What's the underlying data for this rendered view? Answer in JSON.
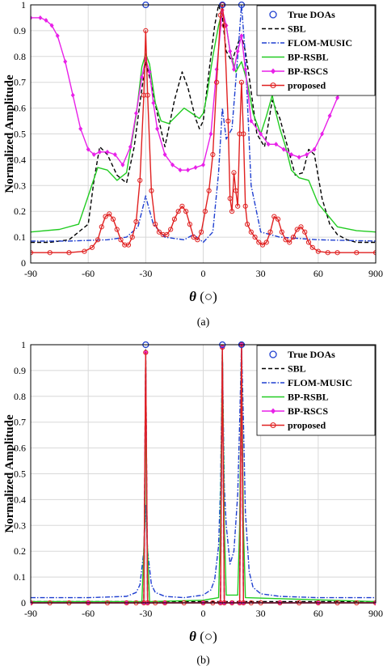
{
  "chart_data": [
    {
      "type": "line",
      "caption": "(a)",
      "ylabel": "Normalized Amplitude",
      "xlabel": "θ (○)",
      "xlim": [
        -90,
        90
      ],
      "ylim": [
        0,
        1
      ],
      "x_ticks": [
        "-90",
        "-60",
        "-30",
        "0",
        "30",
        "60",
        "900"
      ],
      "y_ticks": [
        "0",
        "0.1",
        "0.2",
        "0.3",
        "0.4",
        "0.5",
        "0.6",
        "0.7",
        "0.8",
        "0.9",
        "1"
      ],
      "grid": true,
      "legend": "top-right",
      "series": [
        {
          "name": "True DOAs",
          "color": "#1f3fd0",
          "style": "marker-circle",
          "x": [
            -30,
            10,
            20
          ],
          "y": [
            1,
            1,
            1
          ]
        },
        {
          "name": "SBL",
          "color": "#000000",
          "style": "dashed",
          "x": [
            -90,
            -80,
            -70,
            -60,
            -57,
            -54,
            -50,
            -45,
            -40,
            -36,
            -33,
            -30,
            -27,
            -24,
            -20,
            -15,
            -11,
            -8,
            -4,
            -2,
            0,
            3,
            6,
            8,
            10,
            12,
            15,
            18,
            20,
            22,
            24,
            28,
            32,
            36,
            40,
            44,
            48,
            52,
            55,
            58,
            62,
            66,
            70,
            75,
            80,
            90
          ],
          "y": [
            0.08,
            0.08,
            0.09,
            0.15,
            0.32,
            0.45,
            0.42,
            0.34,
            0.31,
            0.45,
            0.62,
            0.78,
            0.69,
            0.58,
            0.45,
            0.63,
            0.74,
            0.68,
            0.56,
            0.52,
            0.55,
            0.74,
            0.92,
            1.0,
            0.95,
            0.82,
            0.78,
            0.85,
            0.88,
            0.82,
            0.72,
            0.5,
            0.45,
            0.63,
            0.56,
            0.45,
            0.34,
            0.35,
            0.44,
            0.42,
            0.25,
            0.15,
            0.11,
            0.09,
            0.08,
            0.08
          ]
        },
        {
          "name": "FLOM-MUSIC",
          "color": "#1f3fd0",
          "style": "dashdot",
          "x": [
            -90,
            -70,
            -50,
            -40,
            -34,
            -31,
            -30,
            -29,
            -26,
            -20,
            -10,
            -5,
            0,
            5,
            8,
            10,
            12,
            15,
            18,
            20,
            22,
            25,
            30,
            40,
            60,
            90
          ],
          "y": [
            0.085,
            0.085,
            0.09,
            0.1,
            0.14,
            0.23,
            0.26,
            0.23,
            0.15,
            0.1,
            0.09,
            0.11,
            0.08,
            0.12,
            0.35,
            0.6,
            0.48,
            0.52,
            0.8,
            1.0,
            0.8,
            0.3,
            0.12,
            0.1,
            0.09,
            0.085
          ]
        },
        {
          "name": "BP-RSBL",
          "color": "#22cc22",
          "style": "solid",
          "x": [
            -90,
            -75,
            -65,
            -60,
            -55,
            -50,
            -45,
            -40,
            -35,
            -32,
            -30,
            -28,
            -25,
            -22,
            -18,
            -14,
            -10,
            -6,
            -2,
            0,
            2,
            5,
            8,
            10,
            12,
            14,
            17,
            20,
            23,
            26,
            30,
            33,
            36,
            38,
            40,
            43,
            46,
            50,
            55,
            60,
            70,
            80,
            90
          ],
          "y": [
            0.12,
            0.13,
            0.15,
            0.26,
            0.37,
            0.36,
            0.32,
            0.35,
            0.57,
            0.76,
            0.81,
            0.77,
            0.62,
            0.55,
            0.54,
            0.57,
            0.6,
            0.58,
            0.56,
            0.58,
            0.65,
            0.8,
            0.92,
            0.98,
            0.92,
            0.82,
            0.74,
            0.78,
            0.7,
            0.58,
            0.5,
            0.57,
            0.65,
            0.58,
            0.52,
            0.45,
            0.36,
            0.33,
            0.32,
            0.23,
            0.14,
            0.125,
            0.12
          ]
        },
        {
          "name": "BP-RSCS",
          "color": "#e820e8",
          "style": "diamond",
          "x": [
            -90,
            -85,
            -82,
            -79,
            -76,
            -72,
            -68,
            -64,
            -60,
            -57,
            -54,
            -50,
            -46,
            -42,
            -38,
            -35,
            -32,
            -30,
            -28,
            -26,
            -24,
            -20,
            -16,
            -12,
            -8,
            -4,
            0,
            4,
            7,
            10,
            12,
            14,
            16,
            18,
            20,
            22,
            25,
            30,
            34,
            38,
            42,
            46,
            50,
            54,
            58,
            62,
            66,
            70,
            72
          ],
          "y": [
            0.95,
            0.95,
            0.94,
            0.92,
            0.88,
            0.78,
            0.65,
            0.52,
            0.44,
            0.42,
            0.43,
            0.43,
            0.42,
            0.38,
            0.45,
            0.58,
            0.72,
            0.79,
            0.74,
            0.62,
            0.52,
            0.42,
            0.38,
            0.36,
            0.36,
            0.37,
            0.38,
            0.5,
            0.75,
            0.98,
            0.92,
            0.82,
            0.75,
            0.82,
            0.88,
            0.75,
            0.55,
            0.5,
            0.46,
            0.46,
            0.44,
            0.42,
            0.41,
            0.42,
            0.44,
            0.5,
            0.57,
            0.64,
            0.67
          ]
        },
        {
          "name": "proposed",
          "color": "#e02020",
          "style": "circle",
          "x": [
            -90,
            -80,
            -70,
            -62,
            -58,
            -55,
            -53,
            -51,
            -49,
            -47,
            -45,
            -43,
            -41,
            -39,
            -37,
            -35,
            -33,
            -31,
            -30,
            -29,
            -27,
            -25,
            -23,
            -21,
            -19,
            -17,
            -15,
            -13,
            -11,
            -9,
            -7,
            -5,
            -3,
            -1,
            1,
            3,
            5,
            7,
            9,
            10,
            11,
            13,
            14,
            15,
            16,
            17,
            18,
            19,
            20,
            21,
            22,
            23,
            25,
            27,
            29,
            31,
            33,
            35,
            37,
            39,
            41,
            43,
            45,
            47,
            49,
            51,
            53,
            55,
            57,
            60,
            65,
            70,
            80,
            90
          ],
          "y": [
            0.04,
            0.04,
            0.04,
            0.045,
            0.06,
            0.09,
            0.14,
            0.18,
            0.19,
            0.17,
            0.13,
            0.09,
            0.07,
            0.07,
            0.1,
            0.16,
            0.32,
            0.65,
            0.9,
            0.65,
            0.28,
            0.15,
            0.12,
            0.11,
            0.11,
            0.13,
            0.17,
            0.2,
            0.22,
            0.2,
            0.15,
            0.1,
            0.09,
            0.12,
            0.2,
            0.28,
            0.42,
            0.7,
            0.96,
            1.0,
            0.92,
            0.55,
            0.25,
            0.2,
            0.35,
            0.28,
            0.22,
            0.5,
            0.7,
            0.5,
            0.22,
            0.15,
            0.12,
            0.1,
            0.08,
            0.07,
            0.08,
            0.12,
            0.18,
            0.17,
            0.12,
            0.09,
            0.08,
            0.1,
            0.13,
            0.14,
            0.12,
            0.08,
            0.06,
            0.045,
            0.04,
            0.04,
            0.04,
            0.04
          ]
        }
      ]
    },
    {
      "type": "line",
      "caption": "(b)",
      "ylabel": "Normalized Amplitude",
      "xlabel": "θ (○)",
      "xlim": [
        -90,
        90
      ],
      "ylim": [
        0,
        1
      ],
      "x_ticks": [
        "-90",
        "-60",
        "-30",
        "0",
        "30",
        "60",
        "900"
      ],
      "y_ticks": [
        "0",
        "0.1",
        "0.2",
        "0.3",
        "0.4",
        "0.5",
        "0.6",
        "0.7",
        "0.8",
        "0.9",
        "1"
      ],
      "grid": true,
      "legend": "top-right",
      "series": [
        {
          "name": "True DOAs",
          "color": "#1f3fd0",
          "style": "marker-circle",
          "x": [
            -30,
            10,
            20
          ],
          "y": [
            1,
            1,
            1
          ]
        },
        {
          "name": "SBL",
          "color": "#000000",
          "style": "dashed",
          "x": [
            -90,
            -31,
            -30,
            -29,
            9,
            10,
            11,
            19,
            20,
            21,
            90
          ],
          "y": [
            0.005,
            0.005,
            0.98,
            0.005,
            0.005,
            0.99,
            0.005,
            0.005,
            0.99,
            0.005,
            0.005
          ]
        },
        {
          "name": "FLOM-MUSIC",
          "color": "#1f3fd0",
          "style": "dashdot",
          "x": [
            -90,
            -60,
            -40,
            -35,
            -33,
            -31,
            -30,
            -29,
            -27,
            -25,
            -20,
            -10,
            0,
            4,
            6,
            8,
            9,
            10,
            11,
            12,
            14,
            16,
            18,
            19,
            20,
            21,
            22,
            24,
            26,
            30,
            40,
            60,
            90
          ],
          "y": [
            0.02,
            0.02,
            0.025,
            0.04,
            0.07,
            0.2,
            0.38,
            0.2,
            0.07,
            0.04,
            0.025,
            0.02,
            0.03,
            0.05,
            0.09,
            0.22,
            0.45,
            0.98,
            0.45,
            0.3,
            0.15,
            0.2,
            0.42,
            0.7,
            1.0,
            0.7,
            0.35,
            0.12,
            0.06,
            0.035,
            0.025,
            0.02,
            0.02
          ]
        },
        {
          "name": "BP-RSBL",
          "color": "#22cc22",
          "style": "solid",
          "x": [
            -90,
            -32,
            -30.5,
            -30,
            -29.5,
            -28,
            0,
            8,
            9,
            10,
            11,
            12,
            18,
            19,
            20,
            21,
            22,
            90
          ],
          "y": [
            0.005,
            0.005,
            0.3,
            0.97,
            0.3,
            0.005,
            0.01,
            0.02,
            0.3,
            0.99,
            0.3,
            0.03,
            0.03,
            0.3,
            0.98,
            0.3,
            0.02,
            0.005
          ]
        },
        {
          "name": "BP-RSCS",
          "color": "#e820e8",
          "style": "diamond",
          "x": [
            -90,
            -60,
            -40,
            -31,
            -30,
            -29,
            -20,
            0,
            9,
            10,
            11,
            15,
            19,
            20,
            21,
            40,
            60,
            90
          ],
          "y": [
            0.0,
            0.0,
            0.0,
            0.0,
            0.97,
            0.0,
            0.0,
            0.0,
            0.0,
            0.99,
            0.0,
            0.0,
            0.0,
            1.0,
            0.0,
            0.0,
            0.0,
            0.0
          ]
        },
        {
          "name": "proposed",
          "color": "#e02020",
          "style": "circle",
          "x": [
            -90,
            -80,
            -70,
            -60,
            -50,
            -40,
            -35,
            -31,
            -30,
            -29,
            -25,
            -20,
            -10,
            0,
            5,
            9,
            10,
            11,
            15,
            19,
            20,
            21,
            25,
            30,
            40,
            50,
            60,
            70,
            80,
            90
          ],
          "y": [
            0.0,
            0.0,
            0.0,
            0.0,
            0.0,
            0.0,
            0.0,
            0.0,
            0.97,
            0.0,
            0.0,
            0.0,
            0.0,
            0.0,
            0.0,
            0.0,
            0.99,
            0.0,
            0.0,
            0.0,
            1.0,
            0.0,
            0.0,
            0.0,
            0.0,
            0.0,
            0.0,
            0.0,
            0.0,
            0.0
          ]
        }
      ]
    }
  ]
}
